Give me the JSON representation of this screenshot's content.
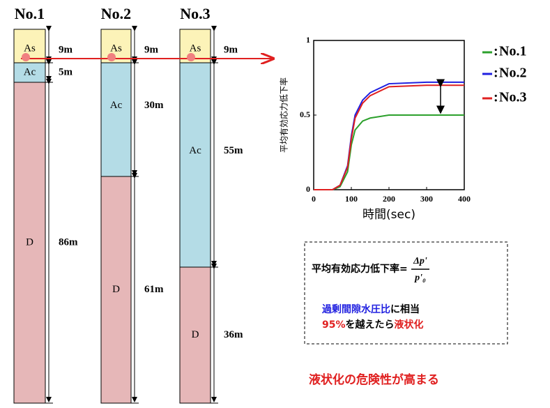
{
  "columns": [
    {
      "title": "No.1",
      "layers": [
        {
          "name": "As",
          "thickness": "9m"
        },
        {
          "name": "Ac",
          "thickness": "5m"
        },
        {
          "name": "D",
          "thickness": "86m"
        }
      ]
    },
    {
      "title": "No.2",
      "layers": [
        {
          "name": "As",
          "thickness": "9m"
        },
        {
          "name": "Ac",
          "thickness": "30m"
        },
        {
          "name": "D",
          "thickness": "61m"
        }
      ]
    },
    {
      "title": "No.3",
      "layers": [
        {
          "name": "As",
          "thickness": "9m"
        },
        {
          "name": "Ac",
          "thickness": "55m"
        },
        {
          "name": "D",
          "thickness": "36m"
        }
      ]
    }
  ],
  "chart_data": {
    "type": "line",
    "y_label": "平均有効応力低下率",
    "x_label": "時間(sec)",
    "xlim": [
      0,
      400
    ],
    "xticks": [
      0,
      100,
      200,
      300,
      400
    ],
    "ylim": [
      0,
      1
    ],
    "yticks": [
      0,
      0.5,
      1
    ],
    "x": [
      0,
      50,
      70,
      90,
      100,
      110,
      130,
      150,
      200,
      300,
      400
    ],
    "series": [
      {
        "name": "No.1",
        "color": "#2ca02c",
        "values": [
          0,
          0,
          0.02,
          0.12,
          0.3,
          0.4,
          0.46,
          0.48,
          0.5,
          0.5,
          0.5
        ]
      },
      {
        "name": "No.2",
        "color": "#1f1fe0",
        "values": [
          0,
          0,
          0.03,
          0.16,
          0.36,
          0.5,
          0.6,
          0.65,
          0.71,
          0.72,
          0.72
        ]
      },
      {
        "name": "No.3",
        "color": "#e02020",
        "values": [
          0,
          0,
          0.03,
          0.15,
          0.34,
          0.48,
          0.58,
          0.63,
          0.69,
          0.7,
          0.7
        ]
      }
    ]
  },
  "formula": {
    "lhs": "平均有効応力低下率=",
    "numerator": "Δp'",
    "denominator": "p'₀",
    "line1": {
      "highlight": "過剰間隙水圧比",
      "rest": "に相当"
    },
    "line2": {
      "highlight1": "95%",
      "middle": "を越えたら",
      "highlight2": "液状化"
    }
  },
  "conclusion": "液状化の危険性が高まる"
}
